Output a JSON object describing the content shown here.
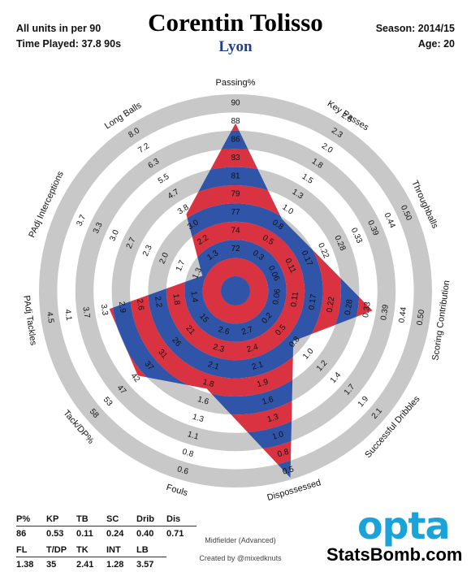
{
  "header": {
    "units_note": "All units in per 90",
    "time_played": "Time Played: 37.8 90s",
    "player_name": "Corentin Tolisso",
    "team": "Lyon",
    "season": "Season: 2014/15",
    "age": "Age: 20"
  },
  "chart_data": {
    "type": "radar",
    "title": "Corentin Tolisso",
    "rings": 10,
    "colors": {
      "fill_primary": "#2f54a8",
      "fill_secondary": "#d93240",
      "ring_gray": "#c8c8c8",
      "text": "#111111"
    },
    "axes": [
      {
        "name": "Passing%",
        "ticks": [
          "72",
          "74",
          "77",
          "79",
          "81",
          "83",
          "86",
          "88",
          "90"
        ],
        "value": 86
      },
      {
        "name": "Key Passes",
        "ticks": [
          "0.3",
          "0.5",
          "0.8",
          "1.0",
          "1.3",
          "1.5",
          "1.8",
          "2.0",
          "2.3",
          "2.5"
        ],
        "value": 0.53
      },
      {
        "name": "Throughballs",
        "ticks": [
          "0.06",
          "0.11",
          "0.17",
          "0.22",
          "0.28",
          "0.33",
          "0.39",
          "0.44",
          "0.50"
        ],
        "value": 0.11
      },
      {
        "name": "Scoring Contribution",
        "ticks": [
          "0.06",
          "0.11",
          "0.17",
          "0.22",
          "0.28",
          "0.33",
          "0.39",
          "0.44",
          "0.50"
        ],
        "value": 0.24
      },
      {
        "name": "Successful Dribbles",
        "ticks": [
          "0.2",
          "0.5",
          "0.8",
          "1.0",
          "1.2",
          "1.4",
          "1.7",
          "1.9",
          "2.1"
        ],
        "value": 0.4
      },
      {
        "name": "Dispossessed",
        "ticks": [
          "2.7",
          "2.4",
          "2.1",
          "1.9",
          "1.6",
          "1.3",
          "1.0",
          "0.8",
          "0.5"
        ],
        "value": 0.71
      },
      {
        "name": "Fouls",
        "ticks": [
          "2.6",
          "2.3",
          "2.1",
          "1.8",
          "1.6",
          "1.3",
          "1.1",
          "0.8",
          "0.6"
        ],
        "value": 1.38
      },
      {
        "name": "Tack/DP%",
        "ticks": [
          "15",
          "21",
          "26",
          "31",
          "37",
          "42",
          "47",
          "53",
          "58"
        ],
        "value": 35
      },
      {
        "name": "PAdj Tackles",
        "ticks": [
          "1.4",
          "1.8",
          "2.2",
          "2.6",
          "2.9",
          "3.3",
          "3.7",
          "4.1",
          "4.5"
        ],
        "value": 2.41
      },
      {
        "name": "PAdj Interceptions",
        "ticks": [
          "1.3",
          "1.7",
          "2.0",
          "2.3",
          "2.7",
          "3.0",
          "3.3",
          "3.7"
        ],
        "value": 1.28
      },
      {
        "name": "Long Balls",
        "ticks": [
          "1.3",
          "2.2",
          "3.0",
          "3.8",
          "4.7",
          "5.5",
          "6.3",
          "7.2",
          "8.0"
        ],
        "value": 3.57
      }
    ],
    "radius_fraction": [
      0.84,
      0.39,
      0.41,
      0.68,
      0.34,
      0.99,
      0.48,
      0.63,
      0.62,
      0.12,
      0.42
    ]
  },
  "stats_table": {
    "row1_headers": [
      "P%",
      "KP",
      "TB",
      "SC",
      "Drib",
      "Dis"
    ],
    "row1_values": [
      "86",
      "0.53",
      "0.11",
      "0.24",
      "0.40",
      "0.71"
    ],
    "row2_headers": [
      "FL",
      "T/DP",
      "TK",
      "INT",
      "LB"
    ],
    "row2_values": [
      "1.38",
      "35",
      "2.41",
      "1.28",
      "3.57"
    ]
  },
  "footer": {
    "role": "Midfielder (Advanced)",
    "credit": "Created by @mixedknuts",
    "logo_text": "opta",
    "brand": "StatsBomb.com"
  }
}
